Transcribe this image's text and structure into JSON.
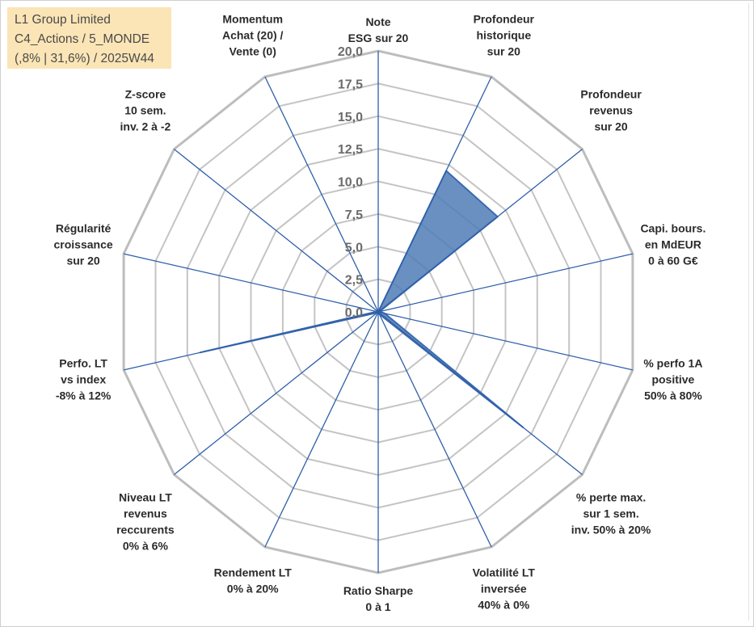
{
  "info": {
    "line1": "L1 Group Limited",
    "line2": "C4_Actions / 5_MONDE",
    "line3": "(,8% | 31,6%) / 2025W44"
  },
  "colors": {
    "fill": "#4f7db5",
    "outline": "#3a6ab0",
    "spoke": "#2e5fa8",
    "grid": "#c4c4c4",
    "outer_grid": "#bdbdbd",
    "info_bg": "#fbe5b6"
  },
  "chart_data": {
    "type": "radar",
    "title": "",
    "rmin": 0,
    "rmax": 20,
    "grid_step": 2.5,
    "tick_labels": [
      "0,0",
      "2,5",
      "5,0",
      "7,5",
      "10,0",
      "12,5",
      "15,0",
      "17,5",
      "20,0"
    ],
    "axes": [
      {
        "label": [
          "Note",
          "ESG sur 20"
        ],
        "value": 0
      },
      {
        "label": [
          "Profondeur",
          "historique",
          "sur 20"
        ],
        "value": 12.0
      },
      {
        "label": [
          "Profondeur",
          "revenus",
          "sur 20"
        ],
        "value": 11.7
      },
      {
        "label": [
          "Capi. bours.",
          "en MdEUR",
          "0 à 60 G€"
        ],
        "value": 0.1
      },
      {
        "label": [
          "% perfo 1A",
          "positive",
          "50% à 80%"
        ],
        "value": 0.5
      },
      {
        "label": [
          "% perte max.",
          "sur 1 sem.",
          "inv. 50% à 20%"
        ],
        "value": 14.2
      },
      {
        "label": [
          "Volatilité LT",
          "inversée",
          "40% à 0%"
        ],
        "value": 0.2
      },
      {
        "label": [
          "Ratio Sharpe",
          "0 à 1"
        ],
        "value": 0
      },
      {
        "label": [
          "Rendement LT",
          "0% à 20%"
        ],
        "value": 0
      },
      {
        "label": [
          "Niveau LT",
          "revenus",
          "reccurents",
          "0% à 6%"
        ],
        "value": 0.1
      },
      {
        "label": [
          "Perfo. LT",
          "vs index",
          "-8% à 12%"
        ],
        "value": 14.0
      },
      {
        "label": [
          "Régularité",
          "croissance",
          "sur 20"
        ],
        "value": 0.1
      },
      {
        "label": [
          "Z-score",
          "10 sem.",
          "inv. 2 à -2"
        ],
        "value": 0.1
      },
      {
        "label": [
          "Momentum",
          "Achat (20) /",
          "Vente (0)"
        ],
        "value": 0
      }
    ]
  }
}
